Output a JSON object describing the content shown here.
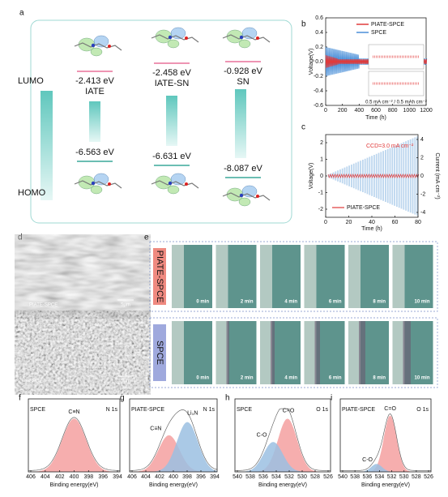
{
  "panels": {
    "a": {
      "label": "a",
      "lumo": "LUMO",
      "homo": "HOMO",
      "molecules": [
        {
          "name": "IATE",
          "lumo": "-2.413 eV",
          "homo": "-6.563 eV"
        },
        {
          "name": "IATE-SN",
          "lumo": "-2.458 eV",
          "homo": "-6.631 eV"
        },
        {
          "name": "SN",
          "lumo": "-0.928 eV",
          "homo": "-8.087 eV"
        }
      ]
    },
    "b": {
      "label": "b",
      "ylabel": "Voltage(V)",
      "xlabel": "Time (h)",
      "yticks": [
        "0.6",
        "0.4",
        "0.2",
        "0.0",
        "-0.2",
        "-0.4",
        "-0.6"
      ],
      "xticks": [
        "0",
        "200",
        "400",
        "600",
        "800",
        "1000",
        "1200"
      ],
      "legend": [
        "PIATE-SPCE",
        "SPCE"
      ],
      "annotation": "0.5 mA cm⁻² / 0.5 mAh cm⁻²"
    },
    "c": {
      "label": "c",
      "ylabel": "Voltage(V)",
      "y2label": "Current (mA cm⁻²)",
      "xlabel": "Time (h)",
      "yticks": [
        "2",
        "1",
        "0",
        "-1",
        "-2"
      ],
      "y2ticks": [
        "4",
        "2",
        "0",
        "-2",
        "-4"
      ],
      "xticks": [
        "0",
        "20",
        "40",
        "60",
        "80"
      ],
      "annotation": "CCD=3.0 mA cm⁻²",
      "legend": [
        "PIATE-SPCE"
      ]
    },
    "d": {
      "label": "d",
      "images": [
        {
          "name": "PIATE-SPCE",
          "scale": "5μm"
        },
        {
          "name": "SPCE",
          "scale": "5μm"
        }
      ]
    },
    "e": {
      "label": "e",
      "rows": [
        "PIATE-SPCE",
        "SPCE"
      ],
      "times": [
        "0 min",
        "2 min",
        "4 min",
        "6 min",
        "8 min",
        "10 min"
      ]
    },
    "xps": [
      {
        "label": "f",
        "sample": "SPCE",
        "core": "N 1s",
        "peaks": [
          "C≡N"
        ],
        "xlabel": "Binding energy(eV)",
        "xticks": [
          "406",
          "404",
          "402",
          "400",
          "398",
          "396",
          "394"
        ]
      },
      {
        "label": "g",
        "sample": "PIATE-SPCE",
        "core": "N 1s",
        "peaks": [
          "C≡N",
          "Li₃N"
        ],
        "xlabel": "Binding energy(eV)",
        "xticks": [
          "406",
          "404",
          "402",
          "400",
          "398",
          "396",
          "394"
        ]
      },
      {
        "label": "h",
        "sample": "SPCE",
        "core": "O 1s",
        "peaks": [
          "C=O",
          "C-O"
        ],
        "xlabel": "Binding energy(eV)",
        "xticks": [
          "540",
          "538",
          "536",
          "534",
          "532",
          "530",
          "528",
          "526"
        ]
      },
      {
        "label": "i",
        "sample": "PIATE-SPCE",
        "core": "O 1s",
        "peaks": [
          "C=O",
          "C-O"
        ],
        "xlabel": "Binding energy(eV)",
        "xticks": [
          "540",
          "538",
          "536",
          "534",
          "532",
          "530",
          "528",
          "526"
        ]
      }
    ]
  }
}
